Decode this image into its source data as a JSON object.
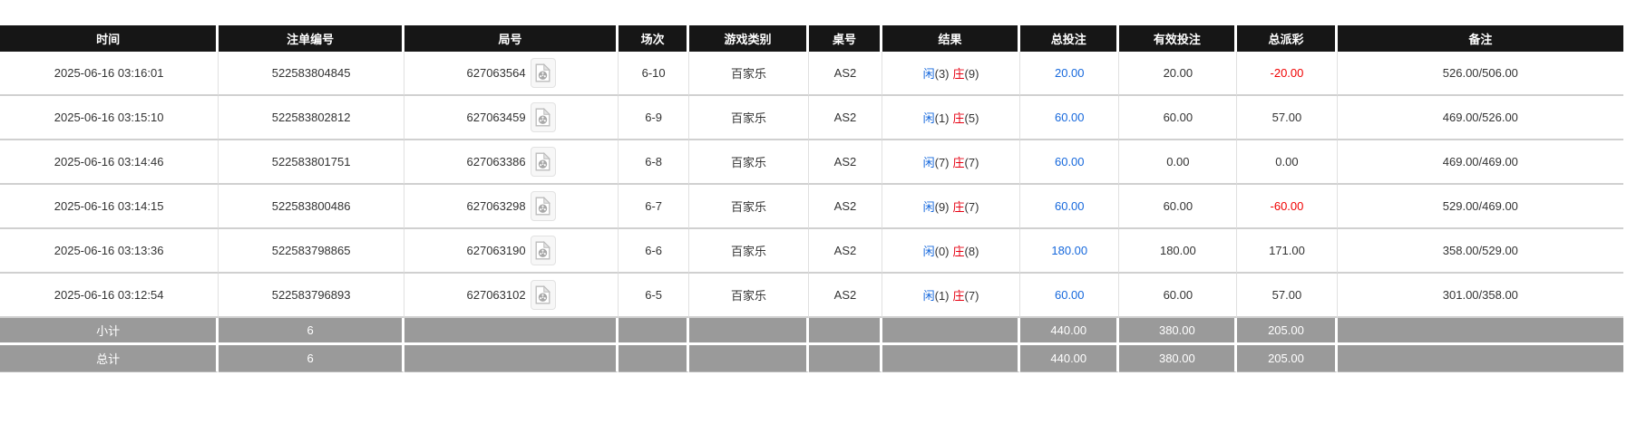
{
  "colors": {
    "accent_blue": "#1668dc",
    "negative_red": "#f00000",
    "banker_red": "#e60012",
    "header_bg": "#161616",
    "summary_bg": "#9a9a9a"
  },
  "icons": {
    "round_video": "video-file-icon"
  },
  "table": {
    "headers": [
      "时间",
      "注单编号",
      "局号",
      "场次",
      "游戏类别",
      "桌号",
      "结果",
      "总投注",
      "有效投注",
      "总派彩",
      "备注"
    ],
    "rows": [
      {
        "time": "2025-06-16 03:16:01",
        "bet_id": "522583804845",
        "round_id": "627063564",
        "session": "6-10",
        "game_type": "百家乐",
        "table_id": "AS2",
        "result": {
          "player_label": "闲",
          "player_score": "(3)",
          "banker_label": "庄",
          "banker_score": "(9)"
        },
        "total_bet": "20.00",
        "valid_bet": "20.00",
        "payout": "-20.00",
        "remark": "526.00/506.00"
      },
      {
        "time": "2025-06-16 03:15:10",
        "bet_id": "522583802812",
        "round_id": "627063459",
        "session": "6-9",
        "game_type": "百家乐",
        "table_id": "AS2",
        "result": {
          "player_label": "闲",
          "player_score": "(1)",
          "banker_label": "庄",
          "banker_score": "(5)"
        },
        "total_bet": "60.00",
        "valid_bet": "60.00",
        "payout": "57.00",
        "remark": "469.00/526.00"
      },
      {
        "time": "2025-06-16 03:14:46",
        "bet_id": "522583801751",
        "round_id": "627063386",
        "session": "6-8",
        "game_type": "百家乐",
        "table_id": "AS2",
        "result": {
          "player_label": "闲",
          "player_score": "(7)",
          "banker_label": "庄",
          "banker_score": "(7)"
        },
        "total_bet": "60.00",
        "valid_bet": "0.00",
        "payout": "0.00",
        "remark": "469.00/469.00"
      },
      {
        "time": "2025-06-16 03:14:15",
        "bet_id": "522583800486",
        "round_id": "627063298",
        "session": "6-7",
        "game_type": "百家乐",
        "table_id": "AS2",
        "result": {
          "player_label": "闲",
          "player_score": "(9)",
          "banker_label": "庄",
          "banker_score": "(7)"
        },
        "total_bet": "60.00",
        "valid_bet": "60.00",
        "payout": "-60.00",
        "remark": "529.00/469.00"
      },
      {
        "time": "2025-06-16 03:13:36",
        "bet_id": "522583798865",
        "round_id": "627063190",
        "session": "6-6",
        "game_type": "百家乐",
        "table_id": "AS2",
        "result": {
          "player_label": "闲",
          "player_score": "(0)",
          "banker_label": "庄",
          "banker_score": "(8)"
        },
        "total_bet": "180.00",
        "valid_bet": "180.00",
        "payout": "171.00",
        "remark": "358.00/529.00"
      },
      {
        "time": "2025-06-16 03:12:54",
        "bet_id": "522583796893",
        "round_id": "627063102",
        "session": "6-5",
        "game_type": "百家乐",
        "table_id": "AS2",
        "result": {
          "player_label": "闲",
          "player_score": "(1)",
          "banker_label": "庄",
          "banker_score": "(7)"
        },
        "total_bet": "60.00",
        "valid_bet": "60.00",
        "payout": "57.00",
        "remark": "301.00/358.00"
      }
    ],
    "summary_rows": [
      {
        "label": "小计",
        "count": "6",
        "total_bet": "440.00",
        "valid_bet": "380.00",
        "payout": "205.00",
        "name": "subtotal-row"
      },
      {
        "label": "总计",
        "count": "6",
        "total_bet": "440.00",
        "valid_bet": "380.00",
        "payout": "205.00",
        "name": "grandtotal-row"
      }
    ]
  }
}
